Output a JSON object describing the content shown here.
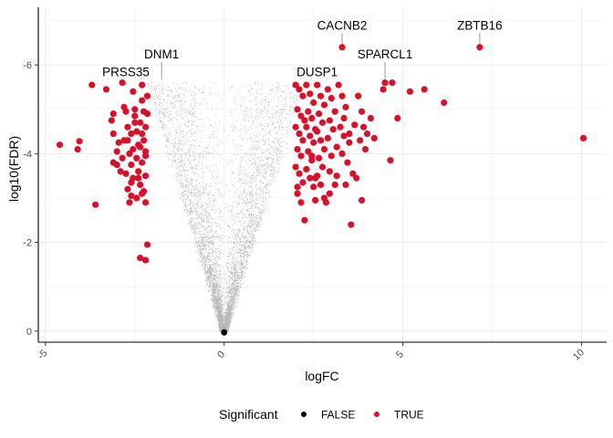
{
  "chart_data": {
    "type": "scatter",
    "title": "",
    "xlabel": "logFC",
    "ylabel": "log10(FDR)",
    "xlim": [
      -5.2,
      10.7
    ],
    "ylim": [
      0.25,
      -7.3
    ],
    "x_ticks": [
      {
        "value": -5,
        "label": "-5"
      },
      {
        "value": 0,
        "label": "0"
      },
      {
        "value": 5,
        "label": "5"
      },
      {
        "value": 10,
        "label": "10"
      }
    ],
    "y_ticks": [
      {
        "value": 0,
        "label": "0"
      },
      {
        "value": -2,
        "label": "-2"
      },
      {
        "value": -4,
        "label": "-4"
      },
      {
        "value": -6,
        "label": "-6"
      }
    ],
    "grid": true,
    "legend": {
      "title": "Significant",
      "position": "bottom",
      "entries": [
        {
          "label": "FALSE",
          "color": "#000000"
        },
        {
          "label": "TRUE",
          "color": "#d7112a"
        }
      ]
    },
    "colors": {
      "significant": "#d7112a",
      "not_significant": "#000000",
      "grid": "#ebebeb",
      "axis": "#000000"
    },
    "background_cloud": {
      "series": "FALSE",
      "shape": "V",
      "point_count": 9000,
      "outer_slope_left": 2.6,
      "outer_slope_right": 2.5,
      "max_logFC": 2.2,
      "max_log10FDR": -5.6
    },
    "significant_points": [
      [
        -4.6,
        -4.2
      ],
      [
        -4.1,
        -4.1
      ],
      [
        -4.05,
        -4.28
      ],
      [
        -3.7,
        -5.55
      ],
      [
        -3.6,
        -2.85
      ],
      [
        -3.3,
        -5.45
      ],
      [
        -3.15,
        -4.75
      ],
      [
        -3.1,
        -4.45
      ],
      [
        -3.0,
        -4.05
      ],
      [
        -2.95,
        -4.25
      ],
      [
        -3.1,
        -3.8
      ],
      [
        -3.0,
        -3.75
      ],
      [
        -2.9,
        -3.6
      ],
      [
        -2.85,
        -3.9
      ],
      [
        -3.1,
        -4.9
      ],
      [
        -2.85,
        -5.6
      ],
      [
        -2.8,
        -5.05
      ],
      [
        -2.75,
        -4.95
      ],
      [
        -2.7,
        -4.6
      ],
      [
        -2.7,
        -4.3
      ],
      [
        -2.65,
        -4.0
      ],
      [
        -2.6,
        -3.75
      ],
      [
        -2.7,
        -3.2
      ],
      [
        -2.6,
        -3.05
      ],
      [
        -2.65,
        -2.9
      ],
      [
        -2.75,
        -3.55
      ],
      [
        -2.55,
        -5.4
      ],
      [
        -2.5,
        -5.0
      ],
      [
        -2.5,
        -4.7
      ],
      [
        -2.45,
        -4.5
      ],
      [
        -2.4,
        -4.2
      ],
      [
        -2.45,
        -3.9
      ],
      [
        -2.4,
        -3.6
      ],
      [
        -2.35,
        -3.3
      ],
      [
        -2.45,
        -3.0
      ],
      [
        -2.3,
        -5.55
      ],
      [
        -2.25,
        -4.95
      ],
      [
        -2.2,
        -4.6
      ],
      [
        -2.25,
        -4.3
      ],
      [
        -2.2,
        -4.05
      ],
      [
        -2.3,
        -3.8
      ],
      [
        -2.2,
        -3.5
      ],
      [
        -2.25,
        -3.15
      ],
      [
        -2.2,
        -2.9
      ],
      [
        -2.3,
        -5.2
      ],
      [
        -2.15,
        -5.3
      ],
      [
        -2.5,
        -4.85
      ],
      [
        -2.35,
        -4.7
      ],
      [
        -2.6,
        -4.45
      ],
      [
        -2.35,
        -4.15
      ],
      [
        -2.8,
        -4.3
      ],
      [
        -2.4,
        -3.45
      ],
      [
        -2.2,
        -3.95
      ],
      [
        -2.55,
        -3.45
      ],
      [
        -2.3,
        -4.45
      ],
      [
        -2.55,
        -4.1
      ],
      [
        -2.15,
        -4.9
      ],
      [
        -2.35,
        -1.65
      ],
      [
        -2.2,
        -1.6
      ],
      [
        -2.15,
        -1.95
      ],
      [
        -2.3,
        -3.1
      ],
      [
        -2.6,
        -3.35
      ],
      [
        2.0,
        -5.55
      ],
      [
        2.1,
        -5.45
      ],
      [
        2.2,
        -5.3
      ],
      [
        2.05,
        -5.0
      ],
      [
        2.15,
        -4.85
      ],
      [
        2.0,
        -4.6
      ],
      [
        2.1,
        -4.45
      ],
      [
        2.2,
        -4.3
      ],
      [
        2.05,
        -4.1
      ],
      [
        2.15,
        -3.95
      ],
      [
        2.0,
        -3.7
      ],
      [
        2.1,
        -3.55
      ],
      [
        2.2,
        -3.35
      ],
      [
        2.05,
        -3.1
      ],
      [
        2.15,
        -2.9
      ],
      [
        2.25,
        -2.5
      ],
      [
        2.05,
        -3.25
      ],
      [
        2.3,
        -5.55
      ],
      [
        2.4,
        -5.35
      ],
      [
        2.5,
        -5.15
      ],
      [
        2.35,
        -4.95
      ],
      [
        2.45,
        -4.8
      ],
      [
        2.3,
        -4.6
      ],
      [
        2.4,
        -4.4
      ],
      [
        2.5,
        -4.25
      ],
      [
        2.35,
        -4.05
      ],
      [
        2.45,
        -3.85
      ],
      [
        2.3,
        -3.65
      ],
      [
        2.4,
        -3.45
      ],
      [
        2.5,
        -3.25
      ],
      [
        2.45,
        -3.95
      ],
      [
        2.55,
        -4.55
      ],
      [
        2.6,
        -5.55
      ],
      [
        2.7,
        -5.3
      ],
      [
        2.8,
        -5.1
      ],
      [
        2.65,
        -4.9
      ],
      [
        2.75,
        -4.7
      ],
      [
        2.6,
        -4.5
      ],
      [
        2.7,
        -4.3
      ],
      [
        2.8,
        -4.1
      ],
      [
        2.65,
        -3.9
      ],
      [
        2.75,
        -3.7
      ],
      [
        2.6,
        -3.5
      ],
      [
        2.7,
        -3.3
      ],
      [
        2.8,
        -3.0
      ],
      [
        2.85,
        -2.9
      ],
      [
        2.55,
        -2.95
      ],
      [
        2.9,
        -5.45
      ],
      [
        3.0,
        -5.25
      ],
      [
        3.1,
        -4.95
      ],
      [
        3.05,
        -4.55
      ],
      [
        2.9,
        -4.35
      ],
      [
        3.15,
        -4.15
      ],
      [
        3.0,
        -3.95
      ],
      [
        2.95,
        -3.6
      ],
      [
        3.1,
        -3.3
      ],
      [
        2.95,
        -3.1
      ],
      [
        3.2,
        -5.55
      ],
      [
        3.3,
        -5.3
      ],
      [
        3.4,
        -5.05
      ],
      [
        3.25,
        -4.6
      ],
      [
        3.35,
        -4.4
      ],
      [
        3.5,
        -4.25
      ],
      [
        3.3,
        -4.0
      ],
      [
        3.45,
        -3.8
      ],
      [
        3.6,
        -3.55
      ],
      [
        3.4,
        -3.3
      ],
      [
        3.7,
        -3.45
      ],
      [
        3.55,
        -2.4
      ],
      [
        3.75,
        -5.3
      ],
      [
        3.85,
        -4.95
      ],
      [
        3.9,
        -4.6
      ],
      [
        3.8,
        -4.3
      ],
      [
        4.0,
        -4.45
      ],
      [
        4.1,
        -4.8
      ],
      [
        3.95,
        -4.1
      ],
      [
        4.2,
        -4.35
      ],
      [
        3.65,
        -4.65
      ],
      [
        3.85,
        -2.95
      ],
      [
        3.35,
        -4.8
      ],
      [
        4.45,
        -5.45
      ],
      [
        4.5,
        -5.6
      ],
      [
        4.7,
        -5.6
      ],
      [
        4.65,
        -3.85
      ],
      [
        4.85,
        -4.8
      ],
      [
        5.2,
        -5.4
      ],
      [
        5.6,
        -5.45
      ],
      [
        6.15,
        -5.15
      ],
      [
        3.3,
        -6.4
      ],
      [
        7.15,
        -6.4
      ],
      [
        10.05,
        -4.35
      ],
      [
        3.5,
        -4.45
      ],
      [
        2.25,
        -4.75
      ],
      [
        2.95,
        -4.75
      ],
      [
        2.55,
        -3.45
      ],
      [
        3.15,
        -3.5
      ]
    ],
    "annotations": [
      {
        "label": "DNM1",
        "x": -1.75,
        "y": -5.6,
        "label_x": -1.75,
        "label_y": -6.15
      },
      {
        "label": "PRSS35",
        "x": -2.3,
        "y": -5.55,
        "label_x": -2.75,
        "label_y": -5.75
      },
      {
        "label": "CACNB2",
        "x": 3.3,
        "y": -6.4,
        "label_x": 3.3,
        "label_y": -6.8
      },
      {
        "label": "SPARCL1",
        "x": 4.5,
        "y": -5.6,
        "label_x": 4.5,
        "label_y": -6.15
      },
      {
        "label": "DUSP1",
        "x": 2.6,
        "y": -5.55,
        "label_x": 2.6,
        "label_y": -5.75
      },
      {
        "label": "ZBTB16",
        "x": 7.15,
        "y": -6.4,
        "label_x": 7.15,
        "label_y": -6.8
      }
    ]
  }
}
